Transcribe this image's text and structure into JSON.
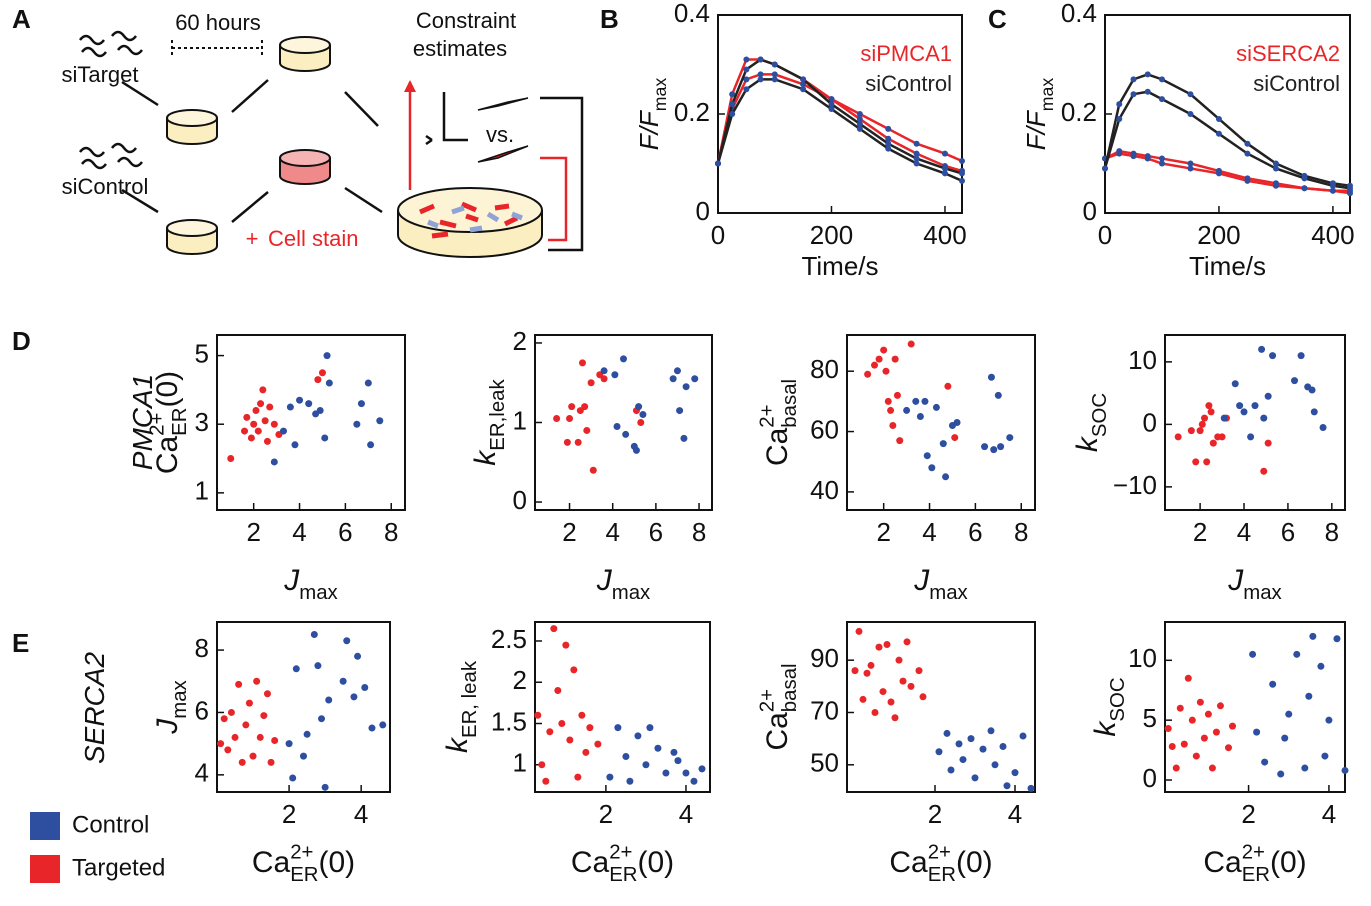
{
  "panel_labels": [
    "A",
    "B",
    "C",
    "D",
    "E"
  ],
  "row_labels": [
    "PMCA1",
    "SERCA2"
  ],
  "diagram": {
    "period": "60 hours",
    "target": "siTarget",
    "control": "siControl",
    "plus": "+",
    "stain": "Cell stain",
    "estimates": [
      "Constraint",
      "estimates"
    ],
    "versus": "vs."
  },
  "legend": [
    {
      "name": "Control",
      "color": "#2e4ea0"
    },
    {
      "name": "Targeted",
      "color": "#e8262a"
    }
  ],
  "chart_data": [
    {
      "type": "line",
      "x": [
        0,
        25,
        50,
        75,
        100,
        150,
        200,
        250,
        300,
        350,
        400,
        430
      ],
      "xlim": [
        0,
        430
      ],
      "xticks": [
        0,
        200,
        400
      ],
      "ylim": [
        0,
        0.4
      ],
      "yticks": [
        0,
        0.2,
        0.4
      ],
      "xlabel": "Time/s",
      "ylabel": {
        "base": "F/F",
        "sub": "max"
      },
      "marker_color": "#2e4ea0",
      "series": [
        {
          "name": "siPMCA1",
          "color": "#e8262a",
          "values": [
            0.1,
            0.24,
            0.31,
            0.31,
            0.3,
            0.27,
            0.23,
            0.19,
            0.15,
            0.12,
            0.095,
            0.085
          ]
        },
        {
          "color": "#e8262a",
          "values": [
            0.1,
            0.21,
            0.27,
            0.28,
            0.28,
            0.26,
            0.23,
            0.2,
            0.17,
            0.14,
            0.12,
            0.105
          ]
        },
        {
          "name": "siControl",
          "color": "#222222",
          "values": [
            0.1,
            0.22,
            0.29,
            0.31,
            0.3,
            0.27,
            0.22,
            0.18,
            0.14,
            0.11,
            0.09,
            0.08
          ]
        },
        {
          "color": "#222222",
          "values": [
            0.1,
            0.2,
            0.25,
            0.27,
            0.27,
            0.25,
            0.21,
            0.17,
            0.13,
            0.1,
            0.08,
            0.065
          ]
        }
      ]
    },
    {
      "type": "line",
      "x": [
        0,
        25,
        50,
        75,
        100,
        150,
        200,
        250,
        300,
        350,
        400,
        430
      ],
      "xlim": [
        0,
        430
      ],
      "xticks": [
        0,
        200,
        400
      ],
      "ylim": [
        0,
        0.4
      ],
      "yticks": [
        0,
        0.2,
        0.4
      ],
      "xlabel": "Time/s",
      "ylabel": {
        "base": "F/F",
        "sub": "max"
      },
      "marker_color": "#2e4ea0",
      "series": [
        {
          "name": "siSERCA2",
          "color": "#e8262a",
          "values": [
            0.11,
            0.125,
            0.12,
            0.115,
            0.11,
            0.1,
            0.085,
            0.07,
            0.06,
            0.05,
            0.045,
            0.045
          ]
        },
        {
          "color": "#e8262a",
          "values": [
            0.11,
            0.12,
            0.115,
            0.11,
            0.1,
            0.09,
            0.08,
            0.065,
            0.055,
            0.05,
            0.045,
            0.04
          ]
        },
        {
          "name": "siControl",
          "color": "#222222",
          "values": [
            0.09,
            0.22,
            0.27,
            0.28,
            0.27,
            0.24,
            0.19,
            0.14,
            0.1,
            0.075,
            0.06,
            0.055
          ]
        },
        {
          "color": "#222222",
          "values": [
            0.09,
            0.19,
            0.24,
            0.245,
            0.23,
            0.2,
            0.16,
            0.12,
            0.09,
            0.07,
            0.055,
            0.05
          ]
        }
      ]
    },
    {
      "type": "scatter",
      "xlim": [
        0.4,
        8.6
      ],
      "xticks": [
        2,
        4,
        6,
        8
      ],
      "ylim": [
        0.5,
        5.6
      ],
      "yticks": [
        1,
        3,
        5
      ],
      "xlabel": {
        "base": "J",
        "sub": "max"
      },
      "ylabel": {
        "base": "Ca",
        "sup": "2+",
        "sub": "ER",
        "tail": "(0)"
      },
      "series": [
        {
          "color": "#e8262a",
          "x": [
            1.0,
            1.6,
            1.7,
            1.9,
            2.0,
            2.1,
            2.2,
            2.3,
            2.4,
            2.5,
            2.6,
            2.7,
            2.9,
            3.1,
            4.8,
            5.0
          ],
          "y": [
            2.0,
            2.8,
            3.2,
            2.6,
            3.0,
            3.4,
            2.8,
            3.6,
            4.0,
            3.1,
            2.5,
            3.5,
            3.0,
            2.7,
            4.3,
            4.5
          ]
        },
        {
          "color": "#2e4ea0",
          "x": [
            2.9,
            3.3,
            3.6,
            3.8,
            4.0,
            4.4,
            4.7,
            4.9,
            5.1,
            5.2,
            5.3,
            6.5,
            6.7,
            7.0,
            7.1,
            7.5
          ],
          "y": [
            1.9,
            2.8,
            3.5,
            2.4,
            3.7,
            3.6,
            3.3,
            3.4,
            2.6,
            5.0,
            4.2,
            3.0,
            3.6,
            4.2,
            2.4,
            3.1
          ]
        }
      ]
    },
    {
      "type": "scatter",
      "xlim": [
        0.4,
        8.6
      ],
      "xticks": [
        2,
        4,
        6,
        8
      ],
      "ylim": [
        -0.1,
        2.1
      ],
      "yticks": [
        0,
        1,
        2
      ],
      "xlabel": {
        "base": "J",
        "sub": "max"
      },
      "ylabel": {
        "base": "k",
        "sub": "ER,leak"
      },
      "series": [
        {
          "color": "#e8262a",
          "x": [
            1.4,
            1.9,
            2.0,
            2.1,
            2.4,
            2.5,
            2.6,
            2.7,
            2.8,
            3.0,
            3.1,
            3.4,
            3.6,
            5.1,
            5.3
          ],
          "y": [
            1.05,
            0.75,
            1.05,
            1.2,
            0.75,
            1.15,
            1.75,
            1.2,
            0.9,
            1.5,
            0.4,
            1.6,
            1.55,
            1.15,
            1.0
          ]
        },
        {
          "color": "#2e4ea0",
          "x": [
            3.6,
            4.1,
            4.2,
            4.5,
            4.6,
            5.0,
            5.1,
            5.2,
            5.4,
            6.8,
            7.0,
            7.1,
            7.3,
            7.4,
            7.8
          ],
          "y": [
            1.65,
            1.6,
            0.95,
            1.8,
            0.85,
            0.7,
            0.65,
            1.2,
            1.1,
            1.55,
            1.65,
            1.15,
            0.8,
            1.45,
            1.55
          ]
        }
      ]
    },
    {
      "type": "scatter",
      "xlim": [
        0.4,
        8.6
      ],
      "xticks": [
        2,
        4,
        6,
        8
      ],
      "ylim": [
        34,
        92
      ],
      "yticks": [
        40,
        60,
        80
      ],
      "xlabel": {
        "base": "J",
        "sub": "max"
      },
      "ylabel": {
        "base": "Ca",
        "sup": "2+",
        "sub": "basal"
      },
      "series": [
        {
          "color": "#e8262a",
          "x": [
            1.3,
            1.6,
            1.8,
            2.0,
            2.1,
            2.2,
            2.3,
            2.4,
            2.5,
            2.6,
            2.7,
            3.2,
            4.8,
            5.1
          ],
          "y": [
            79,
            82,
            84,
            87,
            80,
            70,
            67,
            62,
            84,
            72,
            57,
            89,
            75,
            58
          ]
        },
        {
          "color": "#2e4ea0",
          "x": [
            3.0,
            3.4,
            3.6,
            3.8,
            3.9,
            4.1,
            4.3,
            4.6,
            4.7,
            5.0,
            5.2,
            6.4,
            6.7,
            6.8,
            7.0,
            7.1,
            7.5
          ],
          "y": [
            67,
            70,
            65,
            70,
            52,
            48,
            68,
            56,
            45,
            62,
            63,
            55,
            78,
            54,
            72,
            55,
            58
          ]
        }
      ]
    },
    {
      "type": "scatter",
      "xlim": [
        0.4,
        8.6
      ],
      "xticks": [
        2,
        4,
        6,
        8
      ],
      "ylim": [
        -13.7,
        14.3
      ],
      "yticks": [
        {
          "value": -10,
          "label": "−10"
        },
        0,
        10
      ],
      "xlabel": {
        "base": "J",
        "sub": "max"
      },
      "ylabel": {
        "base": "k",
        "sub": "SOC"
      },
      "series": [
        {
          "color": "#e8262a",
          "x": [
            1.0,
            1.6,
            1.8,
            2.0,
            2.1,
            2.2,
            2.3,
            2.4,
            2.5,
            2.6,
            2.8,
            3.0,
            3.2,
            4.9,
            5.1
          ],
          "y": [
            -2,
            -1,
            -6,
            -1,
            0,
            1,
            -6,
            3,
            2,
            -3,
            -2,
            -2,
            1,
            -7.5,
            -3
          ]
        },
        {
          "color": "#2e4ea0",
          "x": [
            3.1,
            3.6,
            3.8,
            4.0,
            4.3,
            4.5,
            4.8,
            4.9,
            5.1,
            5.3,
            6.3,
            6.6,
            6.9,
            7.1,
            7.2,
            7.6
          ],
          "y": [
            1,
            6.5,
            3,
            2,
            -2,
            3,
            12,
            1,
            4.5,
            11,
            7,
            11,
            6,
            5.5,
            2,
            -0.5
          ]
        }
      ]
    },
    {
      "type": "scatter",
      "xlim": [
        0,
        4.8
      ],
      "xticks": [
        2,
        4
      ],
      "ylim": [
        3.45,
        8.9
      ],
      "yticks": [
        4,
        6,
        8
      ],
      "xlabel": {
        "base": "Ca",
        "sup": "2+",
        "sub": "ER",
        "tail": "(0)"
      },
      "ylabel": {
        "base": "J",
        "sub": "max"
      },
      "series": [
        {
          "color": "#e8262a",
          "x": [
            0.1,
            0.2,
            0.3,
            0.4,
            0.5,
            0.6,
            0.7,
            0.8,
            0.9,
            1.0,
            1.1,
            1.2,
            1.3,
            1.4,
            1.5,
            1.6
          ],
          "y": [
            5.0,
            5.8,
            4.8,
            6.0,
            5.2,
            6.9,
            4.4,
            5.6,
            6.3,
            4.6,
            7.0,
            5.2,
            5.9,
            6.6,
            4.4,
            5.1
          ]
        },
        {
          "color": "#2e4ea0",
          "x": [
            2.0,
            2.1,
            2.2,
            2.4,
            2.5,
            2.7,
            2.8,
            2.9,
            3.0,
            3.1,
            3.5,
            3.6,
            3.8,
            3.9,
            4.1,
            4.3,
            4.6
          ],
          "y": [
            5.0,
            3.9,
            7.4,
            4.6,
            5.3,
            8.5,
            7.5,
            5.8,
            3.6,
            6.4,
            7.0,
            8.3,
            6.5,
            7.8,
            6.8,
            5.5,
            5.6
          ]
        }
      ]
    },
    {
      "type": "scatter",
      "xlim": [
        0.23,
        4.6
      ],
      "xticks": [
        2,
        4
      ],
      "ylim": [
        0.67,
        2.73
      ],
      "yticks": [
        1,
        1.5,
        2,
        2.5
      ],
      "xlabel": {
        "base": "Ca",
        "sup": "2+",
        "sub": "ER",
        "tail": "(0)"
      },
      "ylabel": {
        "base": "k",
        "sub": "ER, leak"
      },
      "series": [
        {
          "color": "#e8262a",
          "x": [
            0.3,
            0.4,
            0.5,
            0.6,
            0.7,
            0.8,
            0.9,
            1.0,
            1.1,
            1.2,
            1.3,
            1.4,
            1.5,
            1.6,
            1.8
          ],
          "y": [
            1.6,
            1.0,
            0.8,
            1.4,
            2.65,
            1.9,
            1.5,
            2.45,
            1.3,
            2.15,
            0.85,
            1.6,
            1.15,
            1.45,
            1.25
          ]
        },
        {
          "color": "#2e4ea0",
          "x": [
            2.1,
            2.3,
            2.5,
            2.6,
            2.8,
            3.0,
            3.1,
            3.3,
            3.5,
            3.7,
            3.8,
            4.0,
            4.2,
            4.4
          ],
          "y": [
            0.85,
            1.45,
            1.1,
            0.8,
            1.35,
            1.0,
            1.45,
            1.2,
            0.9,
            1.15,
            1.05,
            0.9,
            0.8,
            0.95
          ]
        }
      ]
    },
    {
      "type": "scatter",
      "xlim": [
        -0.2,
        4.5
      ],
      "xticks": [
        2,
        4
      ],
      "ylim": [
        39.6,
        104.6
      ],
      "yticks": [
        50,
        70,
        90
      ],
      "xlabel": {
        "base": "Ca",
        "sup": "2+",
        "sub": "ER",
        "tail": "(0)"
      },
      "ylabel": {
        "base": "Ca",
        "sup": "2+",
        "sub": "basal"
      },
      "series": [
        {
          "color": "#e8262a",
          "x": [
            0.0,
            0.1,
            0.2,
            0.3,
            0.4,
            0.5,
            0.6,
            0.7,
            0.8,
            0.9,
            1.0,
            1.1,
            1.2,
            1.3,
            1.4,
            1.6,
            1.7
          ],
          "y": [
            86,
            101,
            75,
            85,
            88,
            70,
            95,
            78,
            96,
            74,
            68,
            90,
            82,
            97,
            80,
            86,
            76
          ]
        },
        {
          "color": "#2e4ea0",
          "x": [
            2.1,
            2.3,
            2.4,
            2.6,
            2.7,
            2.9,
            3.0,
            3.2,
            3.4,
            3.5,
            3.7,
            3.8,
            4.0,
            4.2,
            4.4
          ],
          "y": [
            55,
            62,
            48,
            58,
            52,
            60,
            45,
            56,
            63,
            50,
            57,
            42,
            47,
            61,
            41
          ]
        }
      ]
    },
    {
      "type": "scatter",
      "xlim": [
        -0.08,
        4.4
      ],
      "xticks": [
        2,
        4
      ],
      "ylim": [
        -1,
        13.2
      ],
      "yticks": [
        0,
        5,
        10
      ],
      "xlabel": {
        "base": "Ca",
        "sup": "2+",
        "sub": "ER",
        "tail": "(0)"
      },
      "ylabel": {
        "base": "k",
        "sub": "SOC"
      },
      "series": [
        {
          "color": "#e8262a",
          "x": [
            0.0,
            0.1,
            0.2,
            0.3,
            0.4,
            0.5,
            0.6,
            0.7,
            0.8,
            0.9,
            1.0,
            1.1,
            1.2,
            1.3,
            1.5,
            1.6
          ],
          "y": [
            4.3,
            2.8,
            1.0,
            6.0,
            3.0,
            8.5,
            5.0,
            2.0,
            6.5,
            3.5,
            5.5,
            1.0,
            4.0,
            6.2,
            2.7,
            4.5
          ]
        },
        {
          "color": "#2e4ea0",
          "x": [
            2.1,
            2.2,
            2.4,
            2.6,
            2.8,
            2.9,
            3.0,
            3.2,
            3.4,
            3.5,
            3.6,
            3.8,
            3.9,
            4.0,
            4.2,
            4.4
          ],
          "y": [
            10.5,
            4.0,
            1.5,
            8.0,
            0.5,
            3.5,
            5.5,
            10.5,
            1.0,
            7.0,
            12.0,
            9.5,
            2.0,
            5.0,
            11.8,
            0.8
          ]
        }
      ]
    }
  ]
}
